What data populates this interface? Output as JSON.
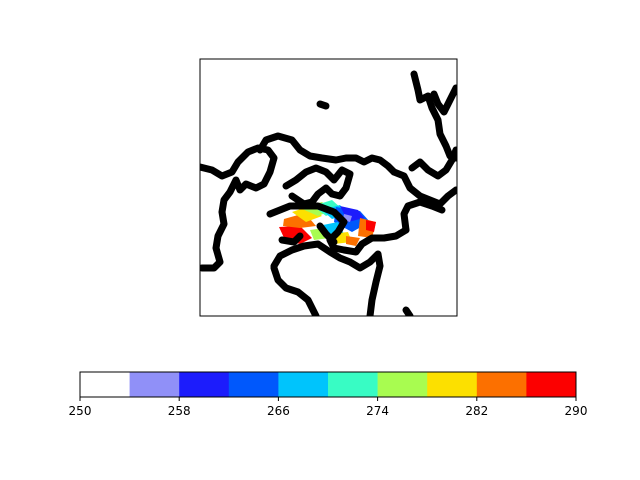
{
  "map": {
    "projection": "polar stereographic",
    "coastline_color": "#000000",
    "background": "#ffffff",
    "frame_ticks": "none",
    "field_region": "Europe"
  },
  "colorbar": {
    "orientation": "horizontal",
    "min": 250,
    "max": 290,
    "step": 4,
    "tick_values": [
      250,
      258,
      266,
      274,
      282,
      290
    ],
    "tick_labels": [
      "250",
      "258",
      "266",
      "274",
      "282",
      "290"
    ],
    "colors": [
      "#ffffff",
      "#9090f8",
      "#1c1cfc",
      "#0058fc",
      "#00c4fc",
      "#38fcc4",
      "#a8fc50",
      "#fce000",
      "#fc7000",
      "#fc0000"
    ]
  }
}
